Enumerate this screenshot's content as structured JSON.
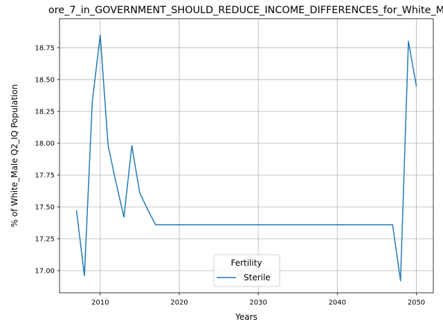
{
  "chart_data": {
    "type": "line",
    "title": "ore_7_in_GOVERNMENT_SHOULD_REDUCE_INCOME_DIFFERENCES_for_White_M",
    "xlabel": "Years",
    "ylabel": "% of White_Male Q2_IQ Population",
    "xlim": [
      2004.85,
      2052.15
    ],
    "ylim": [
      16.826,
      18.978
    ],
    "x_ticks": [
      2010,
      2020,
      2030,
      2040,
      2050
    ],
    "y_ticks": [
      17.0,
      17.25,
      17.5,
      17.75,
      18.0,
      18.25,
      18.5,
      18.75
    ],
    "grid": true,
    "legend": {
      "title": "Fertility",
      "placement": "lower center"
    },
    "series": [
      {
        "name": "Sterile",
        "color": "#1f77b4",
        "x": [
          2007,
          2008,
          2009,
          2010,
          2011,
          2012,
          2013,
          2014,
          2015,
          2016,
          2017,
          2018,
          2019,
          2020,
          2021,
          2022,
          2023,
          2024,
          2025,
          2026,
          2027,
          2028,
          2029,
          2030,
          2031,
          2032,
          2033,
          2034,
          2035,
          2036,
          2037,
          2038,
          2039,
          2040,
          2041,
          2042,
          2043,
          2044,
          2045,
          2046,
          2047,
          2048,
          2049,
          2050
        ],
        "y": [
          17.47,
          16.96,
          18.33,
          18.85,
          17.98,
          17.69,
          17.42,
          17.98,
          17.61,
          17.48,
          17.36,
          17.36,
          17.36,
          17.36,
          17.36,
          17.36,
          17.36,
          17.36,
          17.36,
          17.36,
          17.36,
          17.36,
          17.36,
          17.36,
          17.36,
          17.36,
          17.36,
          17.36,
          17.36,
          17.36,
          17.36,
          17.36,
          17.36,
          17.36,
          17.36,
          17.36,
          17.36,
          17.36,
          17.36,
          17.36,
          17.36,
          16.92,
          18.8,
          18.45
        ]
      }
    ]
  }
}
